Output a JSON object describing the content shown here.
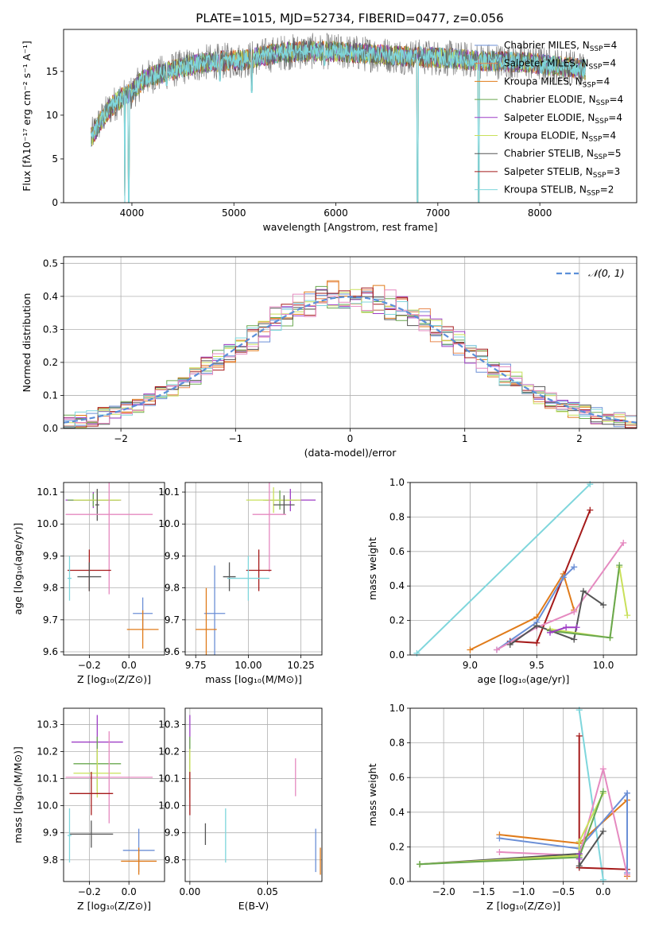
{
  "title": "PLATE=1015, MJD=52734, FIBERID=0477, z=0.056",
  "colors": {
    "Chabrier MILES": "#6b8fd6",
    "Salpeter MILES": "#e8874f",
    "Kroupa MILES": "#e07b1a",
    "Chabrier ELODIE": "#6aa84f",
    "Salpeter ELODIE": "#9e3dc6",
    "Kroupa ELODIE": "#c9e05a",
    "Chabrier STELIB": "#555555",
    "Salpeter STELIB": "#a51a1a",
    "Kroupa STELIB": "#7fd6dc",
    "extra": "#e58ac0",
    "gauss": "#5b8fd9"
  },
  "chart_data": [
    {
      "id": "spectrum",
      "type": "line",
      "xlabel": "wavelength [Angstrom, rest frame]",
      "ylabel": "Flux [fλ10⁻¹⁷ erg cm⁻² s⁻¹ A⁻¹]",
      "xlim": [
        3330,
        8950
      ],
      "ylim": [
        0,
        19.8
      ],
      "xticks": [
        "4000",
        "5000",
        "6000",
        "7000",
        "8000"
      ],
      "yticks": [
        "0",
        "5",
        "10",
        "15"
      ],
      "legend_position": "right",
      "legend": [
        {
          "text": "Chabrier MILES, N",
          "sub": "SSP",
          "post": "=4",
          "color": "#6b8fd6"
        },
        {
          "text": "Salpeter MILES, N",
          "sub": "SSP",
          "post": "=4",
          "color": "#e8874f"
        },
        {
          "text": "Kroupa MILES, N",
          "sub": "SSP",
          "post": "=4",
          "color": "#e07b1a"
        },
        {
          "text": "Chabrier ELODIE, N",
          "sub": "SSP",
          "post": "=4",
          "color": "#6aa84f"
        },
        {
          "text": "Salpeter ELODIE, N",
          "sub": "SSP",
          "post": "=4",
          "color": "#9e3dc6"
        },
        {
          "text": "Kroupa ELODIE, N",
          "sub": "SSP",
          "post": "=4",
          "color": "#c9e05a"
        },
        {
          "text": "Chabrier STELIB, N",
          "sub": "SSP",
          "post": "=5",
          "color": "#555555"
        },
        {
          "text": "Salpeter STELIB, N",
          "sub": "SSP",
          "post": "=3",
          "color": "#a51a1a"
        },
        {
          "text": "Kroupa STELIB, N",
          "sub": "SSP",
          "post": "=2",
          "color": "#7fd6dc"
        }
      ],
      "continuum": [
        [
          3600,
          7.5
        ],
        [
          3700,
          9.5
        ],
        [
          3800,
          11
        ],
        [
          3900,
          12
        ],
        [
          4000,
          12.5
        ],
        [
          4100,
          14
        ],
        [
          4200,
          14.5
        ],
        [
          4300,
          14.8
        ],
        [
          4500,
          15.5
        ],
        [
          4700,
          16
        ],
        [
          4900,
          16.2
        ],
        [
          5100,
          16.3
        ],
        [
          5300,
          16.8
        ],
        [
          5500,
          17.2
        ],
        [
          5700,
          17.3
        ],
        [
          5900,
          17.3
        ],
        [
          6100,
          17.2
        ],
        [
          6300,
          17
        ],
        [
          6500,
          16.9
        ],
        [
          6700,
          16.7
        ],
        [
          6900,
          16.6
        ],
        [
          7100,
          16.5
        ],
        [
          7300,
          16.3
        ],
        [
          7500,
          16.2
        ],
        [
          7700,
          16.1
        ],
        [
          7900,
          16
        ],
        [
          8100,
          15.7
        ],
        [
          8300,
          15.5
        ],
        [
          8450,
          15.2
        ]
      ],
      "dips": [
        [
          3930,
          0
        ],
        [
          3968,
          0
        ],
        [
          4340,
          13.0
        ],
        [
          4861,
          13.5
        ],
        [
          5175,
          12.2
        ],
        [
          5890,
          15.3
        ],
        [
          6563,
          15.4
        ],
        [
          6800,
          0
        ],
        [
          7400,
          0
        ]
      ]
    },
    {
      "id": "residuals",
      "type": "line",
      "xlabel": "(data-model)/error",
      "ylabel": "Normed distribution",
      "xlim": [
        -2.5,
        2.5
      ],
      "ylim": [
        0,
        0.52
      ],
      "xticks": [
        "−2",
        "−1",
        "0",
        "1",
        "2"
      ],
      "yticks": [
        "0.0",
        "0.1",
        "0.2",
        "0.3",
        "0.4",
        "0.5"
      ],
      "legend_label": "𝒩(0, 1)",
      "series": [
        {
          "name": "normal",
          "mean": 0,
          "std": 1,
          "style": "dashed"
        }
      ]
    },
    {
      "id": "age-vs-z",
      "type": "scatter",
      "xlabel": "Z [log₁₀(Z/Z⊙)]",
      "ylabel": "age  [log₁₀(age/yr)]",
      "xlim": [
        -0.33,
        0.18
      ],
      "ylim": [
        9.59,
        10.13
      ],
      "xticks": [
        "−0.2",
        "0.0"
      ],
      "yticks": [
        "9.6",
        "9.7",
        "9.8",
        "9.9",
        "10.0",
        "10.1"
      ],
      "points": [
        {
          "x": 0.07,
          "y": 9.72,
          "xerr": 0.05,
          "yerr": 0.05,
          "color": "#6b8fd6"
        },
        {
          "x": 0.07,
          "y": 9.67,
          "xerr": 0.08,
          "yerr": 0.06,
          "color": "#e07b1a"
        },
        {
          "x": -0.18,
          "y": 10.075,
          "xerr": 0.14,
          "yerr": 0.025,
          "color": "#9e3dc6"
        },
        {
          "x": -0.18,
          "y": 10.075,
          "xerr": 0.13,
          "yerr": 0.02,
          "color": "#6aa84f"
        },
        {
          "x": -0.16,
          "y": 10.075,
          "xerr": 0.12,
          "yerr": 0.03,
          "color": "#c9e05a"
        },
        {
          "x": -0.16,
          "y": 10.06,
          "xerr": 0.01,
          "yerr": 0.05,
          "color": "#555555"
        },
        {
          "x": -0.1,
          "y": 10.03,
          "xerr": 0.22,
          "yerr": 0.25,
          "color": "#e58ac0"
        },
        {
          "x": -0.2,
          "y": 9.855,
          "xerr": 0.11,
          "yerr": 0.065,
          "color": "#a51a1a"
        },
        {
          "x": -0.2,
          "y": 9.835,
          "xerr": 0.06,
          "yerr": 0.045,
          "color": "#555555"
        },
        {
          "x": -0.3,
          "y": 9.83,
          "xerr": 0.01,
          "yerr": 0.07,
          "color": "#7fd6dc"
        }
      ]
    },
    {
      "id": "age-vs-mass",
      "type": "scatter",
      "xlabel": "mass [log₁₀(M/M⊙)]",
      "ylabel": "",
      "xlim": [
        9.7,
        10.35
      ],
      "ylim": [
        9.59,
        10.13
      ],
      "xticks": [
        "9.75",
        "10.00",
        "10.25"
      ],
      "yticks": [
        "9.6",
        "9.7",
        "9.8",
        "9.9",
        "10.0",
        "10.1"
      ],
      "points": [
        {
          "x": 9.84,
          "y": 9.72,
          "xerr": 0.05,
          "yerr": 0.15,
          "color": "#6b8fd6"
        },
        {
          "x": 9.8,
          "y": 9.67,
          "xerr": 0.05,
          "yerr": 0.13,
          "color": "#e07b1a"
        },
        {
          "x": 10.2,
          "y": 10.075,
          "xerr": 0.12,
          "yerr": 0.035,
          "color": "#9e3dc6"
        },
        {
          "x": 10.15,
          "y": 10.075,
          "xerr": 0.08,
          "yerr": 0.03,
          "color": "#6aa84f"
        },
        {
          "x": 10.12,
          "y": 10.075,
          "xerr": 0.13,
          "yerr": 0.04,
          "color": "#c9e05a"
        },
        {
          "x": 10.17,
          "y": 10.06,
          "xerr": 0.05,
          "yerr": 0.03,
          "color": "#555555"
        },
        {
          "x": 10.1,
          "y": 10.03,
          "xerr": 0.08,
          "yerr": 0.18,
          "color": "#e58ac0"
        },
        {
          "x": 10.05,
          "y": 9.855,
          "xerr": 0.06,
          "yerr": 0.065,
          "color": "#a51a1a"
        },
        {
          "x": 9.91,
          "y": 9.835,
          "xerr": 0.03,
          "yerr": 0.045,
          "color": "#555555"
        },
        {
          "x": 10.0,
          "y": 9.83,
          "xerr": 0.1,
          "yerr": 0.07,
          "color": "#7fd6dc"
        }
      ]
    },
    {
      "id": "weight-vs-age",
      "type": "line",
      "xlabel": "age  [log₁₀(age/yr)]",
      "ylabel": "mass weight",
      "xlim": [
        8.55,
        10.25
      ],
      "ylim": [
        0,
        1.0
      ],
      "xticks": [
        "9.0",
        "9.5",
        "10.0"
      ],
      "yticks": [
        "0.0",
        "0.2",
        "0.4",
        "0.6",
        "0.8",
        "1.0"
      ],
      "series": [
        {
          "color": "#7fd6dc",
          "x": [
            8.6,
            9.9
          ],
          "y": [
            0.01,
            0.99
          ]
        },
        {
          "color": "#a51a1a",
          "x": [
            9.3,
            9.5,
            9.9
          ],
          "y": [
            0.08,
            0.07,
            0.84
          ]
        },
        {
          "color": "#e07b1a",
          "x": [
            9.0,
            9.5,
            9.7,
            9.78
          ],
          "y": [
            0.03,
            0.22,
            0.47,
            0.26
          ]
        },
        {
          "color": "#6b8fd6",
          "x": [
            9.2,
            9.5,
            9.7,
            9.78
          ],
          "y": [
            0.03,
            0.19,
            0.45,
            0.51
          ]
        },
        {
          "color": "#e58ac0",
          "x": [
            9.2,
            9.5,
            9.78,
            10.15
          ],
          "y": [
            0.03,
            0.16,
            0.25,
            0.65
          ]
        },
        {
          "color": "#555555",
          "x": [
            9.3,
            9.5,
            9.78,
            9.85,
            10.0
          ],
          "y": [
            0.06,
            0.17,
            0.09,
            0.37,
            0.29
          ]
        },
        {
          "color": "#c9e05a",
          "x": [
            9.6,
            10.05,
            10.12,
            10.18
          ],
          "y": [
            0.15,
            0.1,
            0.51,
            0.23
          ]
        },
        {
          "color": "#6aa84f",
          "x": [
            9.6,
            10.05,
            10.12
          ],
          "y": [
            0.14,
            0.1,
            0.52
          ]
        },
        {
          "color": "#9e3dc6",
          "x": [
            9.6,
            9.72,
            9.8
          ],
          "y": [
            0.13,
            0.16,
            0.16
          ]
        }
      ]
    },
    {
      "id": "mass-vs-z",
      "type": "scatter",
      "xlabel": "Z [log₁₀(Z/Z⊙)]",
      "ylabel": "mass [log₁₀(M/M⊙)]",
      "xlim": [
        -0.33,
        0.18
      ],
      "ylim": [
        9.72,
        10.36
      ],
      "xticks": [
        "−0.2",
        "0.0"
      ],
      "yticks": [
        "9.8",
        "9.9",
        "10.0",
        "10.1",
        "10.2",
        "10.3"
      ],
      "points": [
        {
          "x": 0.05,
          "y": 9.835,
          "xerr": 0.08,
          "yerr": 0.08,
          "color": "#6b8fd6"
        },
        {
          "x": 0.05,
          "y": 9.795,
          "xerr": 0.09,
          "yerr": 0.05,
          "color": "#e07b1a"
        },
        {
          "x": -0.16,
          "y": 10.235,
          "xerr": 0.13,
          "yerr": 0.1,
          "color": "#9e3dc6"
        },
        {
          "x": -0.16,
          "y": 10.155,
          "xerr": 0.12,
          "yerr": 0.1,
          "color": "#6aa84f"
        },
        {
          "x": -0.16,
          "y": 10.12,
          "xerr": 0.12,
          "yerr": 0.09,
          "color": "#c9e05a"
        },
        {
          "x": -0.1,
          "y": 10.105,
          "xerr": 0.22,
          "yerr": 0.17,
          "color": "#e58ac0"
        },
        {
          "x": -0.19,
          "y": 10.045,
          "xerr": 0.11,
          "yerr": 0.08,
          "color": "#a51a1a"
        },
        {
          "x": -0.19,
          "y": 9.895,
          "xerr": 0.11,
          "yerr": 0.05,
          "color": "#555555"
        },
        {
          "x": -0.3,
          "y": 9.89,
          "xerr": 0.01,
          "yerr": 0.1,
          "color": "#7fd6dc"
        }
      ]
    },
    {
      "id": "mass-vs-ebv",
      "type": "scatter",
      "xlabel": "E(B-V)",
      "ylabel": "",
      "xlim": [
        -0.003,
        0.085
      ],
      "ylim": [
        9.72,
        10.36
      ],
      "xticks": [
        "0.00",
        "0.05"
      ],
      "yticks": [
        "9.8",
        "9.9",
        "10.0",
        "10.1",
        "10.2",
        "10.3"
      ],
      "points": [
        {
          "x": 0.081,
          "y": 9.835,
          "xerr": 0.0,
          "yerr": 0.08,
          "color": "#6b8fd6"
        },
        {
          "x": 0.084,
          "y": 9.795,
          "xerr": 0.0,
          "yerr": 0.05,
          "color": "#e07b1a"
        },
        {
          "x": 0.0,
          "y": 10.235,
          "xerr": 0.0,
          "yerr": 0.1,
          "color": "#9e3dc6"
        },
        {
          "x": 0.0,
          "y": 10.155,
          "xerr": 0.0,
          "yerr": 0.1,
          "color": "#6aa84f"
        },
        {
          "x": 0.0,
          "y": 10.12,
          "xerr": 0.0,
          "yerr": 0.09,
          "color": "#c9e05a"
        },
        {
          "x": 0.068,
          "y": 10.105,
          "xerr": 0.0,
          "yerr": 0.07,
          "color": "#e58ac0"
        },
        {
          "x": 0.0,
          "y": 10.045,
          "xerr": 0.0,
          "yerr": 0.08,
          "color": "#a51a1a"
        },
        {
          "x": 0.01,
          "y": 9.895,
          "xerr": 0.0,
          "yerr": 0.04,
          "color": "#555555"
        },
        {
          "x": 0.023,
          "y": 9.89,
          "xerr": 0.0,
          "yerr": 0.1,
          "color": "#7fd6dc"
        }
      ]
    },
    {
      "id": "weight-vs-z",
      "type": "line",
      "xlabel": "Z [log₁₀(Z/Z⊙)]",
      "ylabel": "mass weight",
      "xlim": [
        -2.42,
        0.42
      ],
      "ylim": [
        0,
        1.0
      ],
      "xticks": [
        "−2.0",
        "−1.5",
        "−1.0",
        "−0.5",
        "0.0"
      ],
      "yticks": [
        "0.0",
        "0.2",
        "0.4",
        "0.6",
        "0.8",
        "1.0"
      ],
      "series": [
        {
          "color": "#7fd6dc",
          "x": [
            -0.3,
            0.0
          ],
          "y": [
            0.99,
            0.01
          ]
        },
        {
          "color": "#a51a1a",
          "x": [
            -0.3,
            -0.3,
            0.3
          ],
          "y": [
            0.84,
            0.08,
            0.07
          ]
        },
        {
          "color": "#e07b1a",
          "x": [
            -1.3,
            -0.3,
            0.3,
            0.3
          ],
          "y": [
            0.27,
            0.22,
            0.47,
            0.03
          ]
        },
        {
          "color": "#6b8fd6",
          "x": [
            -1.3,
            -0.3,
            0.3,
            0.3
          ],
          "y": [
            0.25,
            0.19,
            0.51,
            0.05
          ]
        },
        {
          "color": "#e58ac0",
          "x": [
            -1.3,
            -0.3,
            0.0,
            0.3
          ],
          "y": [
            0.17,
            0.15,
            0.65,
            0.04
          ]
        },
        {
          "color": "#555555",
          "x": [
            -2.3,
            -0.3,
            -0.3,
            0.0
          ],
          "y": [
            0.1,
            0.16,
            0.09,
            0.29
          ]
        },
        {
          "color": "#c9e05a",
          "x": [
            -2.3,
            -0.3,
            -0.3,
            0.0
          ],
          "y": [
            0.1,
            0.15,
            0.23,
            0.51
          ]
        },
        {
          "color": "#6aa84f",
          "x": [
            -2.3,
            -0.3,
            0.0
          ],
          "y": [
            0.1,
            0.14,
            0.52
          ]
        },
        {
          "color": "#9e3dc6",
          "x": [
            -0.3,
            -0.3
          ],
          "y": [
            0.13,
            0.16
          ]
        }
      ]
    }
  ]
}
